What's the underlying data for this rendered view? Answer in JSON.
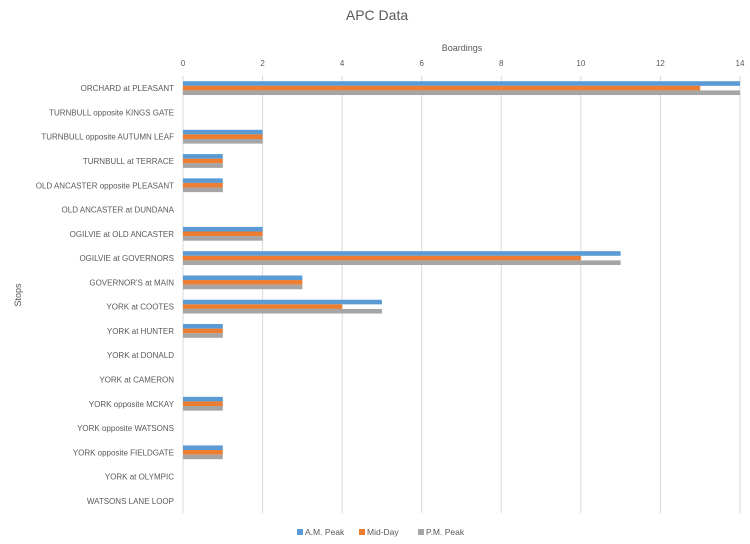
{
  "chart_data": {
    "type": "bar",
    "orientation": "horizontal",
    "title": "APC Data",
    "xlabel": "Boardings",
    "ylabel": "Stops",
    "xlim": [
      0,
      14
    ],
    "xticks": [
      0,
      2,
      4,
      6,
      8,
      10,
      12,
      14
    ],
    "x_axis_position": "top",
    "grid": true,
    "legend_position": "bottom",
    "categories": [
      "ORCHARD at PLEASANT",
      "TURNBULL opposite KINGS GATE",
      "TURNBULL opposite AUTUMN LEAF",
      "TURNBULL at TERRACE",
      "OLD ANCASTER opposite PLEASANT",
      "OLD ANCASTER at DUNDANA",
      "OGILVIE at OLD ANCASTER",
      "OGILVIE at GOVERNORS",
      "GOVERNOR'S at MAIN",
      "YORK at COOTES",
      "YORK at HUNTER",
      "YORK at DONALD",
      "YORK at CAMERON",
      "YORK opposite MCKAY",
      "YORK opposite WATSONS",
      "YORK opposite FIELDGATE",
      "YORK at OLYMPIC",
      "WATSONS LANE LOOP"
    ],
    "series": [
      {
        "name": "A.M. Peak",
        "color": "#5B9BD5",
        "values": [
          14,
          0,
          2,
          1,
          1,
          0,
          2,
          11,
          3,
          5,
          1,
          0,
          0,
          1,
          0,
          1,
          0,
          0
        ]
      },
      {
        "name": "Mid-Day",
        "color": "#ED7D31",
        "values": [
          13,
          0,
          2,
          1,
          1,
          0,
          2,
          10,
          3,
          4,
          1,
          0,
          0,
          1,
          0,
          1,
          0,
          0
        ]
      },
      {
        "name": "P.M. Peak",
        "color": "#A5A5A5",
        "values": [
          14,
          0,
          2,
          1,
          1,
          0,
          2,
          11,
          3,
          5,
          1,
          0,
          0,
          1,
          0,
          1,
          0,
          0
        ]
      }
    ]
  }
}
